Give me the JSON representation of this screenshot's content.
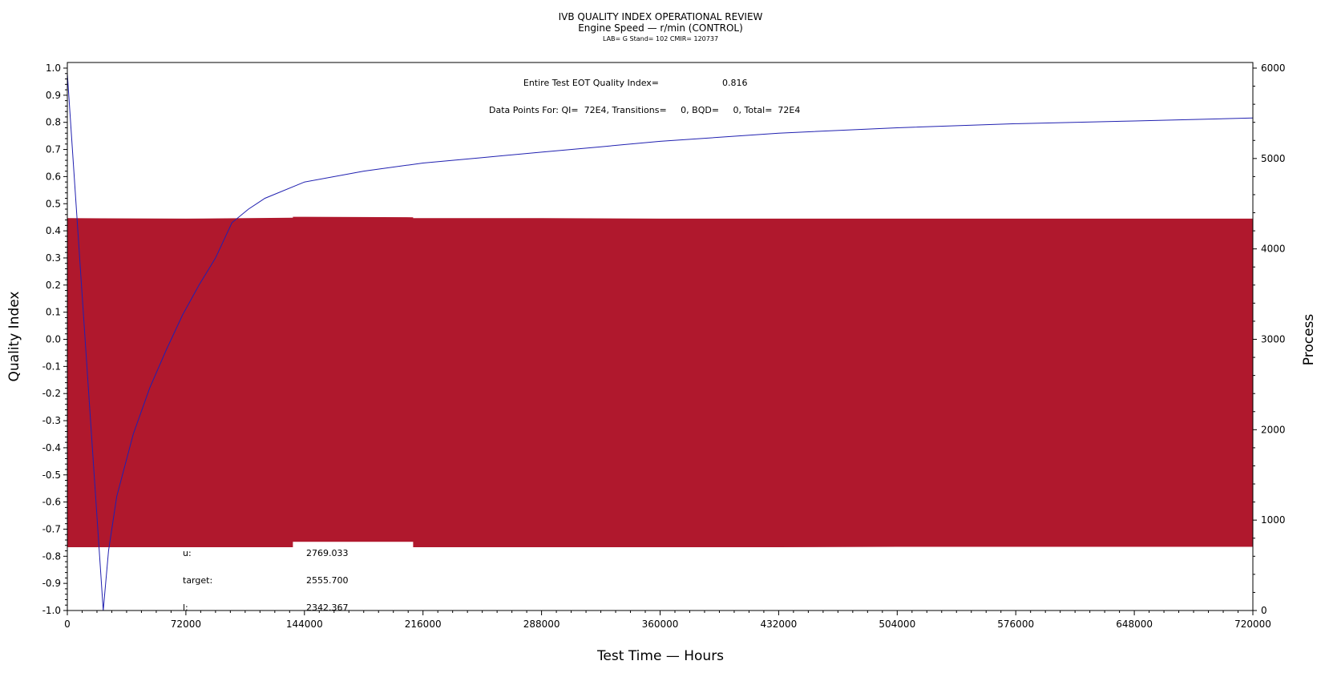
{
  "colors": {
    "process": "#b0182d",
    "quality_index": "#2020b0",
    "axis": "#000000"
  },
  "chart_data": {
    "type": "line",
    "title": "IVB QUALITY INDEX OPERATIONAL REVIEW",
    "subtitle": "Engine Speed — r/min (CONTROL)",
    "subtitle2": "LAB= G Stand= 102 CMIR= 120737",
    "xlabel": "Test Time — Hours",
    "ylabel": "Quality Index",
    "y2label": "Process",
    "xlim": [
      0,
      720000
    ],
    "ylim": [
      -1.0,
      1.0
    ],
    "y2lim": [
      0,
      6000
    ],
    "xticks": [
      "0",
      "72000",
      "144000",
      "216000",
      "288000",
      "360000",
      "432000",
      "504000",
      "576000",
      "648000",
      "720000"
    ],
    "yticks": [
      "1.0",
      "0.9",
      "0.8",
      "0.7",
      "0.6",
      "0.5",
      "0.4",
      "0.3",
      "0.2",
      "0.1",
      "0.0",
      "-0.1",
      "-0.2",
      "-0.3",
      "-0.4",
      "-0.5",
      "-0.6",
      "-0.7",
      "-0.8",
      "-0.9",
      "-1.0"
    ],
    "y2ticks": [
      "6000",
      "5000",
      "4000",
      "3000",
      "2000",
      "1000",
      "0"
    ],
    "annotations": {
      "eot_label": "Entire Test EOT Quality Index=",
      "eot_value": "0.816",
      "points_text": "Data Points For: QI=  72E4, Transitions=     0, BQD=     0, Total=  72E4"
    },
    "limits": [
      {
        "label": "u:",
        "value": "2769.033"
      },
      {
        "label": "target:",
        "value": "2555.700"
      },
      {
        "label": "l:",
        "value": "2342.367"
      }
    ],
    "series": [
      {
        "axis": "y2",
        "band": true,
        "x": [
          0,
          72000,
          137000,
          137000,
          210000,
          210000,
          288000,
          360000,
          432000,
          504000,
          576000,
          648000,
          720000
        ],
        "upper": [
          4340,
          4335,
          4345,
          4355,
          4350,
          4340,
          4340,
          4335,
          4335,
          4335,
          4335,
          4335,
          4335
        ],
        "lower": [
          700,
          700,
          700,
          760,
          760,
          700,
          700,
          700,
          700,
          705,
          705,
          705,
          705
        ]
      },
      {
        "axis": "y",
        "x": [
          0,
          21800,
          25000,
          30000,
          40000,
          50000,
          60000,
          70000,
          80000,
          90000,
          100000,
          110000,
          120000,
          144000,
          180000,
          216000,
          252000,
          288000,
          324000,
          360000,
          432000,
          504000,
          576000,
          648000,
          720000
        ],
        "y": [
          0.98,
          -1.0,
          -0.78,
          -0.58,
          -0.35,
          -0.18,
          -0.04,
          0.09,
          0.2,
          0.3,
          0.43,
          0.48,
          0.52,
          0.58,
          0.62,
          0.65,
          0.67,
          0.69,
          0.71,
          0.73,
          0.76,
          0.78,
          0.795,
          0.805,
          0.816
        ]
      }
    ]
  }
}
